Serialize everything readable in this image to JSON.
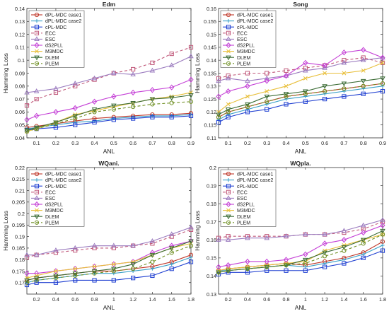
{
  "figure": {
    "background": "#ffffff"
  },
  "styles": {
    "dPL-MDC case1": {
      "color": "#c0392b",
      "dash": "",
      "marker": "circle"
    },
    "dPL-MDC case2": {
      "color": "#3aa0c8",
      "dash": "",
      "marker": "plus"
    },
    "cPL-MDC": {
      "color": "#1f3fd1",
      "dash": "",
      "marker": "square"
    },
    "ECC": {
      "color": "#c0587a",
      "dash": "4 3",
      "marker": "square"
    },
    "ESC": {
      "color": "#9b7bbf",
      "dash": "",
      "marker": "triangle"
    },
    "dS2PLL": {
      "color": "#c43fd6",
      "dash": "",
      "marker": "diamond"
    },
    "M3MDC": {
      "color": "#e8bf3a",
      "dash": "",
      "marker": "x"
    },
    "DLEM": {
      "color": "#3a6b34",
      "dash": "",
      "marker": "triangle-down"
    },
    "PLEM": {
      "color": "#6f8f22",
      "dash": "4 3",
      "marker": "circle"
    }
  },
  "chart_data": [
    {
      "type": "line",
      "title": "Edm",
      "xlabel": "ANL",
      "ylabel": "Hamming Loss",
      "x": [
        0.05,
        0.1,
        0.2,
        0.3,
        0.4,
        0.5,
        0.6,
        0.7,
        0.8,
        0.9
      ],
      "xlim": [
        0.05,
        0.9
      ],
      "ylim": [
        0.04,
        0.14
      ],
      "xticks": [
        "0.1",
        "0.2",
        "0.3",
        "0.4",
        "0.5",
        "0.6",
        "0.7",
        "0.8",
        "0.9"
      ],
      "xtick_values": [
        0.1,
        0.2,
        0.3,
        0.4,
        0.5,
        0.6,
        0.7,
        0.8,
        0.9
      ],
      "yticks": [
        "0.04",
        "0.05",
        "0.06",
        "0.07",
        "0.08",
        "0.09",
        "0.1",
        "0.11",
        "0.12",
        "0.13",
        "0.14"
      ],
      "ytick_values": [
        0.04,
        0.05,
        0.06,
        0.07,
        0.08,
        0.09,
        0.1,
        0.11,
        0.12,
        0.13,
        0.14
      ],
      "legend_position": "top-left",
      "series": [
        {
          "name": "dPL-MDC case1",
          "values": [
            0.048,
            0.049,
            0.051,
            0.053,
            0.055,
            0.056,
            0.057,
            0.058,
            0.058,
            0.059
          ]
        },
        {
          "name": "dPL-MDC case2",
          "values": [
            0.047,
            0.048,
            0.05,
            0.052,
            0.053,
            0.055,
            0.056,
            0.057,
            0.057,
            0.058
          ]
        },
        {
          "name": "cPL-MDC",
          "values": [
            0.046,
            0.047,
            0.048,
            0.05,
            0.052,
            0.054,
            0.055,
            0.056,
            0.056,
            0.057
          ]
        },
        {
          "name": "ECC",
          "values": [
            0.065,
            0.07,
            0.075,
            0.08,
            0.085,
            0.09,
            0.093,
            0.098,
            0.105,
            0.11
          ]
        },
        {
          "name": "ESC",
          "values": [
            0.075,
            0.076,
            0.078,
            0.082,
            0.086,
            0.09,
            0.089,
            0.092,
            0.096,
            0.103
          ]
        },
        {
          "name": "dS2PLL",
          "values": [
            0.054,
            0.057,
            0.06,
            0.063,
            0.068,
            0.072,
            0.075,
            0.077,
            0.079,
            0.085
          ]
        },
        {
          "name": "M3MDC",
          "values": [
            0.045,
            0.047,
            0.052,
            0.058,
            0.061,
            0.064,
            0.067,
            0.07,
            0.072,
            0.075
          ]
        },
        {
          "name": "DLEM",
          "values": [
            0.046,
            0.048,
            0.052,
            0.057,
            0.062,
            0.065,
            0.067,
            0.07,
            0.071,
            0.073
          ]
        },
        {
          "name": "PLEM",
          "values": [
            0.045,
            0.047,
            0.051,
            0.055,
            0.06,
            0.062,
            0.064,
            0.066,
            0.067,
            0.068
          ]
        }
      ]
    },
    {
      "type": "line",
      "title": "Song",
      "xlabel": "ANL",
      "ylabel": "Hamming Loss",
      "x": [
        0.05,
        0.1,
        0.2,
        0.3,
        0.4,
        0.5,
        0.6,
        0.7,
        0.8,
        0.9
      ],
      "xlim": [
        0.05,
        0.9
      ],
      "ylim": [
        0.11,
        0.16
      ],
      "xticks": [
        "0.1",
        "0.2",
        "0.3",
        "0.4",
        "0.5",
        "0.6",
        "0.7",
        "0.8",
        "0.9"
      ],
      "xtick_values": [
        0.1,
        0.2,
        0.3,
        0.4,
        0.5,
        0.6,
        0.7,
        0.8,
        0.9
      ],
      "yticks": [
        "0.11",
        "0.115",
        "0.12",
        "0.125",
        "0.13",
        "0.135",
        "0.14",
        "0.145",
        "0.15",
        "0.155",
        "0.16"
      ],
      "ytick_values": [
        0.11,
        0.115,
        0.12,
        0.125,
        0.13,
        0.135,
        0.14,
        0.145,
        0.15,
        0.155,
        0.16
      ],
      "legend_position": "top-left",
      "series": [
        {
          "name": "dPL-MDC case1",
          "values": [
            0.118,
            0.12,
            0.122,
            0.124,
            0.126,
            0.127,
            0.128,
            0.129,
            0.13,
            0.131
          ]
        },
        {
          "name": "dPL-MDC case2",
          "values": [
            0.117,
            0.119,
            0.121,
            0.123,
            0.125,
            0.126,
            0.127,
            0.128,
            0.129,
            0.13
          ]
        },
        {
          "name": "cPL-MDC",
          "values": [
            0.116,
            0.118,
            0.12,
            0.121,
            0.123,
            0.124,
            0.125,
            0.126,
            0.127,
            0.128
          ]
        },
        {
          "name": "ECC",
          "values": [
            0.133,
            0.134,
            0.135,
            0.135,
            0.136,
            0.137,
            0.138,
            0.14,
            0.141,
            0.139
          ]
        },
        {
          "name": "ESC",
          "values": [
            0.132,
            0.133,
            0.132,
            0.133,
            0.134,
            0.136,
            0.137,
            0.139,
            0.14,
            0.141
          ]
        },
        {
          "name": "dS2PLL",
          "values": [
            0.126,
            0.128,
            0.13,
            0.132,
            0.134,
            0.139,
            0.138,
            0.143,
            0.144,
            0.141
          ]
        },
        {
          "name": "M3MDC",
          "values": [
            0.12,
            0.123,
            0.126,
            0.128,
            0.13,
            0.133,
            0.135,
            0.135,
            0.136,
            0.139
          ]
        },
        {
          "name": "DLEM",
          "values": [
            0.119,
            0.121,
            0.123,
            0.126,
            0.127,
            0.128,
            0.13,
            0.131,
            0.132,
            0.133
          ]
        },
        {
          "name": "PLEM",
          "values": [
            0.118,
            0.12,
            0.122,
            0.124,
            0.126,
            0.127,
            0.128,
            0.129,
            0.13,
            0.131
          ]
        }
      ]
    },
    {
      "type": "line",
      "title": "WQani.",
      "xlabel": "ANL",
      "ylabel": "Hamming Loss",
      "x": [
        0.1,
        0.2,
        0.4,
        0.6,
        0.8,
        1.0,
        1.2,
        1.4,
        1.6,
        1.8
      ],
      "xlim": [
        0.1,
        1.8
      ],
      "ylim": [
        0.165,
        0.22
      ],
      "xticks": [
        "0.2",
        "0.4",
        "0.6",
        "0.8",
        "1",
        "1.2",
        "1.4",
        "1.6",
        "1.8"
      ],
      "xtick_values": [
        0.2,
        0.4,
        0.6,
        0.8,
        1.0,
        1.2,
        1.4,
        1.6,
        1.8
      ],
      "yticks": [
        "0.17",
        "0.175",
        "0.18",
        "0.185",
        "0.19",
        "0.195",
        "0.2",
        "0.205",
        "0.21",
        "0.215",
        "0.22"
      ],
      "ytick_values": [
        0.17,
        0.175,
        0.18,
        0.185,
        0.19,
        0.195,
        0.2,
        0.205,
        0.21,
        0.215,
        0.22
      ],
      "legend_position": "top-left",
      "series": [
        {
          "name": "dPL-MDC case1",
          "values": [
            0.171,
            0.172,
            0.173,
            0.174,
            0.175,
            0.175,
            0.176,
            0.177,
            0.179,
            0.182
          ]
        },
        {
          "name": "dPL-MDC case2",
          "values": [
            0.17,
            0.171,
            0.172,
            0.173,
            0.174,
            0.174,
            0.175,
            0.176,
            0.178,
            0.181
          ]
        },
        {
          "name": "cPL-MDC",
          "values": [
            0.169,
            0.17,
            0.17,
            0.171,
            0.171,
            0.171,
            0.172,
            0.173,
            0.176,
            0.179
          ]
        },
        {
          "name": "ECC",
          "values": [
            0.181,
            0.182,
            0.183,
            0.184,
            0.185,
            0.185,
            0.186,
            0.187,
            0.19,
            0.193
          ]
        },
        {
          "name": "ESC",
          "values": [
            0.182,
            0.182,
            0.184,
            0.185,
            0.186,
            0.186,
            0.186,
            0.188,
            0.191,
            0.194
          ]
        },
        {
          "name": "dS2PLL",
          "values": [
            0.174,
            0.174,
            0.175,
            0.176,
            0.177,
            0.178,
            0.179,
            0.183,
            0.186,
            0.188
          ]
        },
        {
          "name": "M3MDC",
          "values": [
            0.172,
            0.173,
            0.175,
            0.176,
            0.177,
            0.178,
            0.179,
            0.182,
            0.185,
            0.187
          ]
        },
        {
          "name": "DLEM",
          "values": [
            0.171,
            0.172,
            0.173,
            0.174,
            0.175,
            0.176,
            0.178,
            0.182,
            0.185,
            0.188
          ]
        },
        {
          "name": "PLEM",
          "values": [
            0.17,
            0.171,
            0.172,
            0.173,
            0.174,
            0.175,
            0.176,
            0.179,
            0.183,
            0.186
          ]
        }
      ]
    },
    {
      "type": "line",
      "title": "WQpla.",
      "xlabel": "ANL",
      "ylabel": "Hamming Loss",
      "x": [
        0.1,
        0.2,
        0.4,
        0.6,
        0.8,
        1.0,
        1.2,
        1.4,
        1.6,
        1.8
      ],
      "xlim": [
        0.1,
        1.8
      ],
      "ylim": [
        0.13,
        0.2
      ],
      "xticks": [
        "0.2",
        "0.4",
        "0.6",
        "0.8",
        "1",
        "1.2",
        "1.4",
        "1.6",
        "1.8"
      ],
      "xtick_values": [
        0.2,
        0.4,
        0.6,
        0.8,
        1.0,
        1.2,
        1.4,
        1.6,
        1.8
      ],
      "yticks": [
        "0.13",
        "0.14",
        "0.15",
        "0.16",
        "0.17",
        "0.18",
        "0.19",
        "0.2"
      ],
      "ytick_values": [
        0.13,
        0.14,
        0.15,
        0.16,
        0.17,
        0.18,
        0.19,
        0.2
      ],
      "legend_position": "top-left",
      "series": [
        {
          "name": "dPL-MDC case1",
          "values": [
            0.143,
            0.144,
            0.145,
            0.146,
            0.147,
            0.146,
            0.148,
            0.15,
            0.153,
            0.159
          ]
        },
        {
          "name": "dPL-MDC case2",
          "values": [
            0.143,
            0.143,
            0.144,
            0.145,
            0.146,
            0.145,
            0.147,
            0.149,
            0.152,
            0.157
          ]
        },
        {
          "name": "cPL-MDC",
          "values": [
            0.141,
            0.142,
            0.142,
            0.143,
            0.143,
            0.143,
            0.145,
            0.147,
            0.15,
            0.154
          ]
        },
        {
          "name": "ECC",
          "values": [
            0.161,
            0.162,
            0.162,
            0.162,
            0.162,
            0.163,
            0.163,
            0.164,
            0.166,
            0.17
          ]
        },
        {
          "name": "ESC",
          "values": [
            0.16,
            0.16,
            0.161,
            0.161,
            0.162,
            0.163,
            0.163,
            0.165,
            0.168,
            0.171
          ]
        },
        {
          "name": "dS2PLL",
          "values": [
            0.145,
            0.146,
            0.148,
            0.148,
            0.149,
            0.152,
            0.158,
            0.16,
            0.164,
            0.168
          ]
        },
        {
          "name": "M3MDC",
          "values": [
            0.143,
            0.144,
            0.145,
            0.146,
            0.147,
            0.148,
            0.154,
            0.157,
            0.16,
            0.163
          ]
        },
        {
          "name": "DLEM",
          "values": [
            0.142,
            0.143,
            0.144,
            0.145,
            0.146,
            0.149,
            0.153,
            0.156,
            0.16,
            0.165
          ]
        },
        {
          "name": "PLEM",
          "values": [
            0.142,
            0.143,
            0.144,
            0.145,
            0.146,
            0.147,
            0.151,
            0.154,
            0.158,
            0.163
          ]
        }
      ]
    }
  ]
}
